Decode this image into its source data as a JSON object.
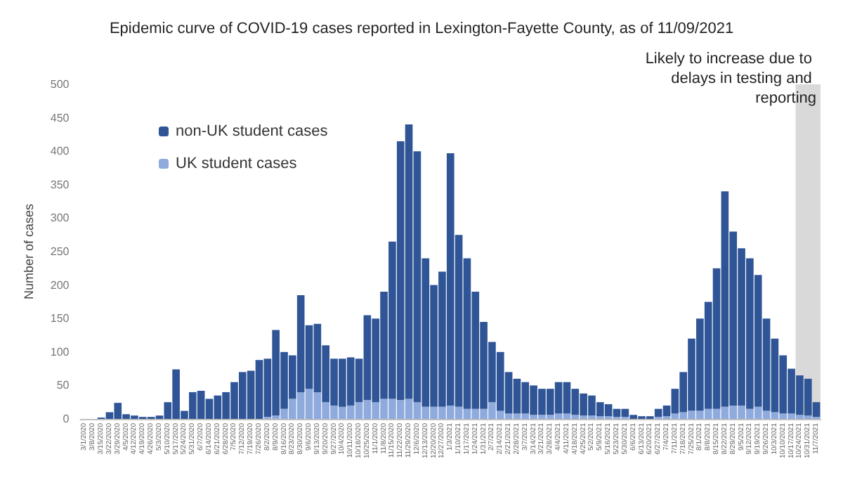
{
  "chart_data": {
    "type": "bar",
    "title": "Epidemic curve of COVID-19 cases reported in Lexington-Fayette County, as of 11/09/2021",
    "ylabel": "Number of cases",
    "stacked": true,
    "grid": false,
    "legend": "top left",
    "categories": [
      "3/1/2020",
      "3/8/2020",
      "3/15/2020",
      "3/22/2020",
      "3/29/2020",
      "4/5/2020",
      "4/12/2020",
      "4/19/2020",
      "4/26/2020",
      "5/3/2020",
      "5/10/2020",
      "5/17/2020",
      "5/24/2020",
      "5/31/2020",
      "6/7/2020",
      "6/14/2020",
      "6/21/2020",
      "6/28/2020",
      "7/5/2020",
      "7/12/2020",
      "7/19/2020",
      "7/26/2020",
      "8/2/2020",
      "8/9/2020",
      "8/16/2020",
      "8/23/2020",
      "8/30/2020",
      "9/6/2020",
      "9/13/2020",
      "9/20/2020",
      "9/27/2020",
      "10/4/2020",
      "10/11/2020",
      "10/18/2020",
      "10/25/2020",
      "11/1/2020",
      "11/8/2020",
      "11/15/2020",
      "11/22/2020",
      "11/29/2020",
      "12/6/2020",
      "12/13/2020",
      "12/20/2020",
      "12/27/2020",
      "1/3/2021",
      "1/10/2021",
      "1/17/2021",
      "1/24/2021",
      "1/31/2021",
      "2/7/2021",
      "2/14/2021",
      "2/21/2021",
      "2/28/2021",
      "3/7/2021",
      "3/14/2021",
      "3/21/2021",
      "3/28/2021",
      "4/4/2021",
      "4/11/2021",
      "4/18/2021",
      "4/25/2021",
      "5/2/2021",
      "5/9/2021",
      "5/16/2021",
      "5/23/2021",
      "5/30/2021",
      "6/6/2021",
      "6/13/2021",
      "6/20/2021",
      "6/27/2021",
      "7/4/2021",
      "7/11/2021",
      "7/18/2021",
      "7/25/2021",
      "8/1/2021",
      "8/8/2021",
      "8/15/2021",
      "8/22/2021",
      "8/29/2021",
      "9/5/2021",
      "9/12/2021",
      "9/19/2021",
      "9/26/2021",
      "10/3/2021",
      "10/10/2021",
      "10/17/2021",
      "10/24/2021",
      "10/31/2021",
      "11/7/2021"
    ],
    "ylim": [
      0,
      500
    ],
    "yticks": [
      0,
      50,
      100,
      150,
      200,
      250,
      300,
      350,
      400,
      450,
      500
    ],
    "series": [
      {
        "name": "UK student cases",
        "color": "#8faadc",
        "values": [
          0,
          0,
          0,
          0,
          0,
          0,
          0,
          0,
          0,
          0,
          0,
          0,
          0,
          0,
          0,
          0,
          0,
          0,
          0,
          0,
          0,
          0,
          3,
          5,
          15,
          30,
          40,
          45,
          40,
          25,
          20,
          18,
          20,
          25,
          28,
          25,
          30,
          30,
          28,
          30,
          25,
          18,
          18,
          18,
          20,
          18,
          15,
          15,
          15,
          25,
          12,
          8,
          8,
          8,
          6,
          6,
          6,
          8,
          8,
          6,
          5,
          5,
          4,
          4,
          3,
          3,
          null,
          null,
          null,
          3,
          4,
          8,
          10,
          12,
          12,
          15,
          15,
          18,
          20,
          20,
          15,
          18,
          12,
          10,
          8,
          8,
          6,
          5,
          3
        ]
      },
      {
        "name": "non-UK student cases",
        "color": "#2f5597",
        "values": [
          0,
          0,
          2,
          10,
          24,
          7,
          5,
          3,
          3,
          5,
          25,
          74,
          12,
          40,
          42,
          30,
          35,
          40,
          55,
          70,
          72,
          88,
          87,
          128,
          85,
          65,
          145,
          95,
          102,
          85,
          70,
          72,
          72,
          65,
          127,
          125,
          160,
          235,
          387,
          410,
          375,
          222,
          182,
          202,
          377,
          257,
          225,
          175,
          130,
          90,
          88,
          62,
          52,
          47,
          44,
          39,
          39,
          47,
          47,
          39,
          33,
          30,
          21,
          18,
          12,
          12,
          6,
          4,
          4,
          12,
          16,
          37,
          60,
          108,
          138,
          160,
          210,
          322,
          260,
          235,
          225,
          197,
          138,
          110,
          87,
          67,
          59,
          55,
          22
        ]
      }
    ],
    "bands": [
      {
        "axis": "x",
        "from": "10/24/2021",
        "to": "11/7/2021",
        "label": "Likely to increase due to delays in testing and reporting",
        "color": "#d9d9d9"
      }
    ]
  }
}
